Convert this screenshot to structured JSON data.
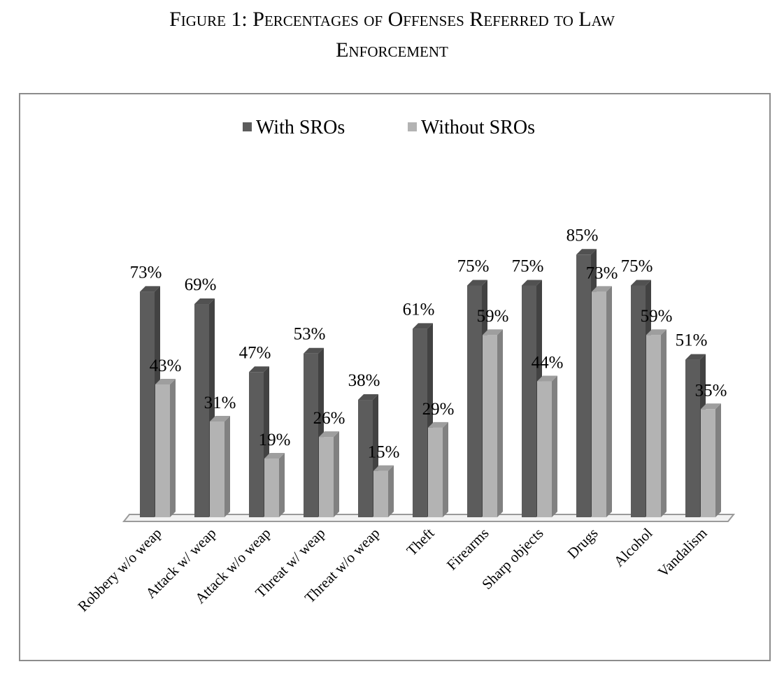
{
  "figure": {
    "title_line1": "Figure 1: Percentages of Offenses Referred to Law",
    "title_line2": "Enforcement"
  },
  "chart_data": {
    "type": "bar",
    "style": "3d-clustered",
    "title": "",
    "xlabel": "",
    "ylabel": "",
    "ylim": [
      0,
      100
    ],
    "grid": false,
    "legend_position": "top",
    "categories": [
      "Robbery w/o weap",
      "Attack w/ weap",
      "Attack w/o weap",
      "Threat w/ weap",
      "Threat w/o weap",
      "Theft",
      "Firearms",
      "Sharp objects",
      "Drugs",
      "Alcohol",
      "Vandalism"
    ],
    "series": [
      {
        "name": "With SROs",
        "color": "#5c5c5c",
        "values": [
          73,
          69,
          47,
          53,
          38,
          61,
          75,
          75,
          85,
          75,
          51
        ],
        "labels": [
          "73%",
          "69%",
          "47%",
          "53%",
          "38%",
          "61%",
          "75%",
          "75%",
          "85%",
          "75%",
          "51%"
        ]
      },
      {
        "name": "Without SROs",
        "color": "#b3b3b3",
        "values": [
          43,
          31,
          19,
          26,
          15,
          29,
          59,
          44,
          73,
          59,
          35
        ],
        "labels": [
          "43%",
          "31%",
          "19%",
          "26%",
          "15%",
          "29%",
          "59%",
          "44%",
          "73%",
          "59%",
          "35%"
        ]
      }
    ]
  }
}
